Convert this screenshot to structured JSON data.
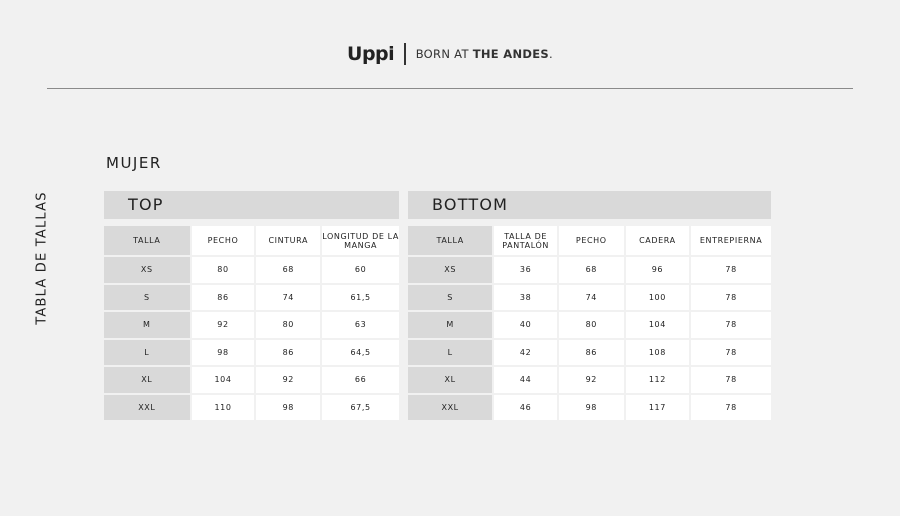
{
  "brand": {
    "logo": "Uppi",
    "tagline_light": "BORN AT ",
    "tagline_bold": "THE ANDES",
    "tagline_end": "."
  },
  "side_title": "TABLA DE TALLAS",
  "section_title": "MUJER",
  "top": {
    "title": "TOP",
    "headers": [
      "TALLA",
      "PECHO",
      "CINTURA",
      "LONGITUD DE LA MANGA"
    ],
    "rows": [
      [
        "XS",
        "80",
        "68",
        "60"
      ],
      [
        "S",
        "86",
        "74",
        "61,5"
      ],
      [
        "M",
        "92",
        "80",
        "63"
      ],
      [
        "L",
        "98",
        "86",
        "64,5"
      ],
      [
        "XL",
        "104",
        "92",
        "66"
      ],
      [
        "XXL",
        "110",
        "98",
        "67,5"
      ]
    ]
  },
  "bottom": {
    "title": "BOTTOM",
    "headers": [
      "TALLA",
      "TALLA DE PANTALÓN",
      "PECHO",
      "CADERA",
      "ENTREPIERNA"
    ],
    "rows": [
      [
        "XS",
        "36",
        "68",
        "96",
        "78"
      ],
      [
        "S",
        "38",
        "74",
        "100",
        "78"
      ],
      [
        "M",
        "40",
        "80",
        "104",
        "78"
      ],
      [
        "L",
        "42",
        "86",
        "108",
        "78"
      ],
      [
        "XL",
        "44",
        "92",
        "112",
        "78"
      ],
      [
        "XXL",
        "46",
        "98",
        "117",
        "78"
      ]
    ]
  }
}
